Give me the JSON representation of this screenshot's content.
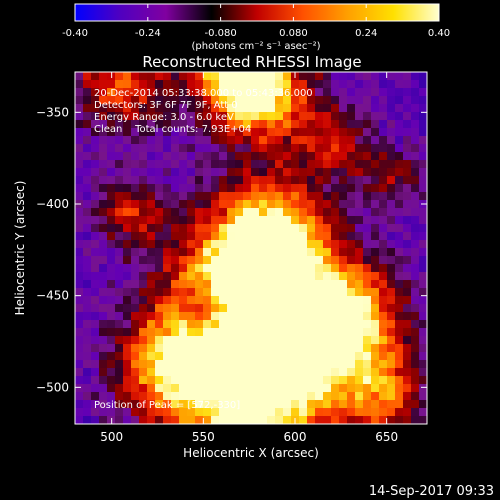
{
  "chart_data": {
    "type": "heatmap",
    "title": "Reconstructed RHESSI Image",
    "xlabel": "Heliocentric X (arcsec)",
    "ylabel": "Heliocentric Y (arcsec)",
    "xlim": [
      480,
      672
    ],
    "ylim": [
      -520,
      -328
    ],
    "x_ticks": [
      500,
      550,
      600,
      650
    ],
    "y_ticks": [
      -350,
      -400,
      -450,
      -500
    ],
    "colorbar": {
      "range": [
        -0.4,
        0.4
      ],
      "ticks": [
        "-0.40",
        "-0.24",
        "-0.080",
        "0.080",
        "0.24",
        "0.40"
      ],
      "unit_label": "(photons cm⁻² s⁻¹ asec⁻²)",
      "colors": [
        "#0000ff",
        "#5000c0",
        "#8000a0",
        "#000000",
        "#c00000",
        "#ff5000",
        "#ffa000",
        "#ffe000",
        "#ffffd0"
      ]
    },
    "info_lines": [
      "20-Dec-2014 05:33:38.000 to 05:43:36.000",
      "Detectors: 3F 6F 7F 9F, Att 0",
      "Energy Range: 3.0 - 6.0 keV",
      "Clean    Total counts: 7.93E+04"
    ],
    "peak_label": "Position of Peak = [572,-330]",
    "timestamp": "14-Sep-2017 09:33",
    "grid": false
  }
}
